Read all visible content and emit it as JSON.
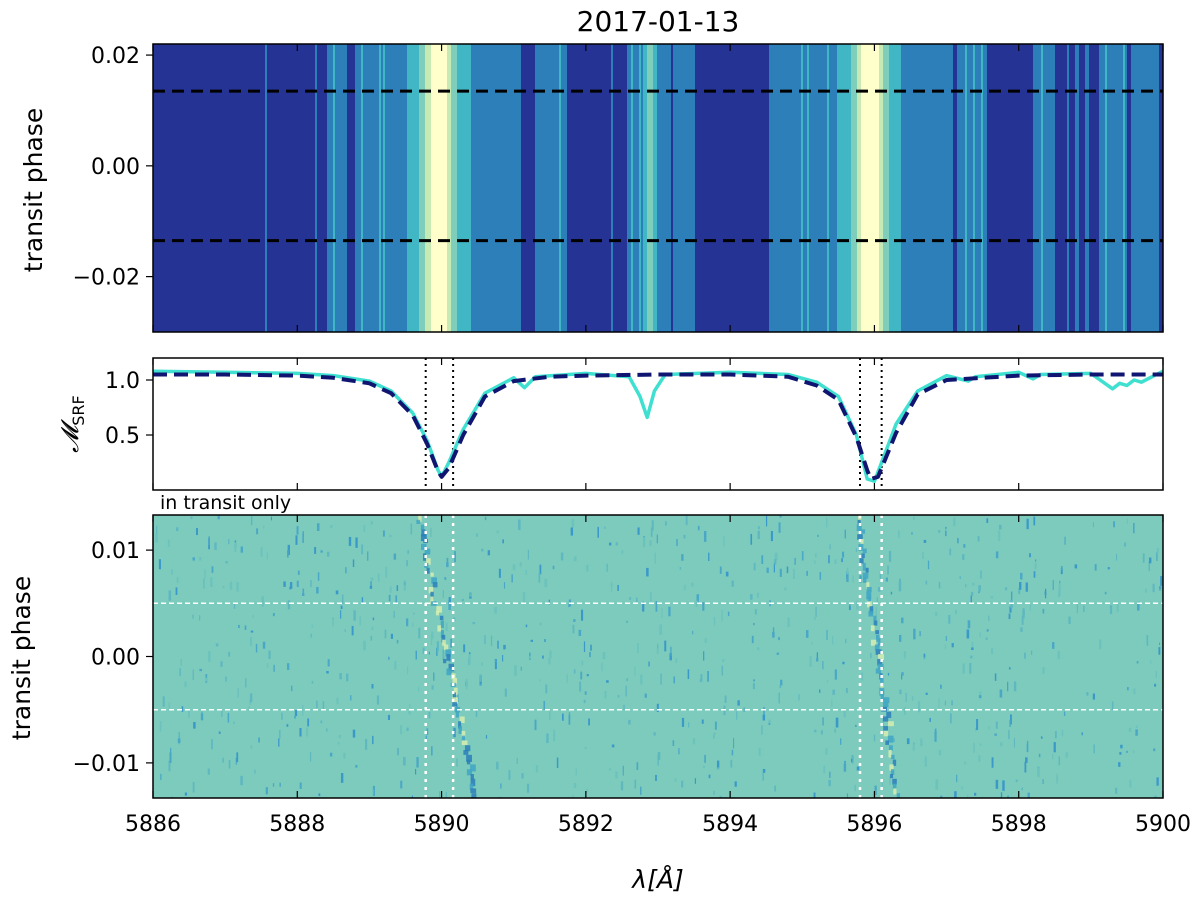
{
  "chart_data": [
    {
      "type": "heatmap",
      "panel": "top",
      "title": "2017-01-13",
      "ylabel": "transit phase",
      "xlim": [
        5886,
        5900
      ],
      "ylim": [
        -0.03,
        0.022
      ],
      "yticks": [
        0.02,
        0.0,
        -0.02
      ],
      "ytick_labels": [
        "0.02",
        "0.00",
        "−0.02"
      ],
      "transit_markers": [
        0.0135,
        -0.0135
      ],
      "colormap": [
        "#253494",
        "#2c7fb8",
        "#41b6c4",
        "#7fcdbb",
        "#c7e9b4",
        "#ffffcc"
      ],
      "bright_bands": [
        {
          "center": 5889.96,
          "level": 5
        },
        {
          "center": 5895.93,
          "level": 5
        },
        {
          "center": 5892.88,
          "level": 2
        }
      ]
    },
    {
      "type": "line",
      "panel": "middle",
      "ylabel": "𝓜",
      "ylabel_sub": "SRF",
      "xlim": [
        5886,
        5900
      ],
      "ylim": [
        0.0,
        1.2
      ],
      "yticks": [
        1.0,
        0.5
      ],
      "ytick_labels": [
        "1.0",
        "0.5"
      ],
      "series": [
        {
          "color": "#40e0d0",
          "style": "solid",
          "x": [
            5886.0,
            5887.0,
            5888.0,
            5888.5,
            5889.0,
            5889.3,
            5889.6,
            5889.8,
            5889.95,
            5890.0,
            5890.1,
            5890.3,
            5890.6,
            5891.0,
            5891.15,
            5891.3,
            5892.0,
            5892.6,
            5892.75,
            5892.85,
            5892.95,
            5893.1,
            5894.0,
            5894.8,
            5895.2,
            5895.5,
            5895.75,
            5895.9,
            5896.0,
            5896.1,
            5896.3,
            5896.6,
            5897.0,
            5897.3,
            5897.4,
            5898.0,
            5898.2,
            5898.3,
            5899.0,
            5899.3,
            5899.4,
            5899.5,
            5899.6,
            5899.7,
            5900.0
          ],
          "y": [
            1.08,
            1.07,
            1.06,
            1.04,
            0.99,
            0.9,
            0.7,
            0.45,
            0.18,
            0.12,
            0.25,
            0.55,
            0.88,
            1.02,
            0.93,
            1.03,
            1.06,
            1.03,
            0.85,
            0.66,
            0.9,
            1.05,
            1.07,
            1.05,
            0.98,
            0.85,
            0.5,
            0.1,
            0.08,
            0.25,
            0.6,
            0.9,
            1.04,
            0.99,
            1.03,
            1.07,
            1.01,
            1.05,
            1.06,
            0.92,
            0.97,
            0.95,
            1.0,
            0.98,
            1.08
          ]
        },
        {
          "color": "#0f1570",
          "style": "dashed",
          "x": [
            5886.0,
            5887.0,
            5888.0,
            5888.5,
            5889.0,
            5889.3,
            5889.6,
            5889.8,
            5889.95,
            5890.0,
            5890.1,
            5890.3,
            5890.6,
            5891.0,
            5891.5,
            5892.0,
            5893.0,
            5894.0,
            5894.8,
            5895.2,
            5895.5,
            5895.75,
            5895.9,
            5895.95,
            5896.05,
            5896.3,
            5896.6,
            5897.0,
            5898.0,
            5899.0,
            5900.0
          ],
          "y": [
            1.05,
            1.05,
            1.04,
            1.02,
            0.97,
            0.88,
            0.68,
            0.42,
            0.17,
            0.12,
            0.2,
            0.5,
            0.85,
            0.99,
            1.03,
            1.04,
            1.05,
            1.05,
            1.03,
            0.95,
            0.82,
            0.48,
            0.18,
            0.1,
            0.12,
            0.52,
            0.87,
            1.0,
            1.04,
            1.05,
            1.05
          ]
        }
      ],
      "vlines": [
        5889.78,
        5890.16,
        5895.8,
        5896.1
      ]
    },
    {
      "type": "heatmap",
      "panel": "bottom",
      "annotation": "in transit only",
      "ylabel": "transit phase",
      "xlabel": "λ[Å]",
      "xlim": [
        5886,
        5900
      ],
      "ylim": [
        -0.0133,
        0.0133
      ],
      "xticks": [
        5886,
        5888,
        5890,
        5892,
        5894,
        5896,
        5898,
        5900
      ],
      "xtick_labels": [
        "5886",
        "5888",
        "5890",
        "5892",
        "5894",
        "5896",
        "5898",
        "5900"
      ],
      "yticks": [
        0.01,
        0.0,
        -0.01
      ],
      "ytick_labels": [
        "0.01",
        "0.00",
        "−0.01"
      ],
      "hlines": [
        0.005,
        -0.005
      ],
      "vlines": [
        5889.78,
        5890.16,
        5895.8,
        5896.1
      ],
      "background": "#7ccbbc",
      "trails": [
        {
          "x_top": 5889.65,
          "x_bottom": 5890.45
        },
        {
          "x_top": 5895.75,
          "x_bottom": 5896.3
        }
      ]
    }
  ]
}
